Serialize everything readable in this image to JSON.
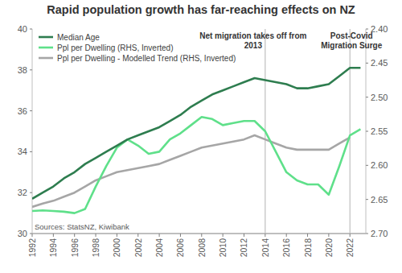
{
  "chart_data": {
    "type": "line",
    "title": "Rapid population growth has far-reaching effects on NZ",
    "source": "Sources: StatsNZ, Kiwibank",
    "x": [
      1992,
      1993,
      1994,
      1995,
      1996,
      1997,
      1998,
      1999,
      2000,
      2001,
      2002,
      2003,
      2004,
      2005,
      2006,
      2007,
      2008,
      2009,
      2010,
      2011,
      2012,
      2013,
      2014,
      2015,
      2016,
      2017,
      2018,
      2019,
      2020,
      2021,
      2022,
      2023
    ],
    "xlim": [
      1992,
      2023.5
    ],
    "xticks": [
      1992,
      1994,
      1996,
      1998,
      2000,
      2002,
      2004,
      2006,
      2008,
      2010,
      2012,
      2014,
      2016,
      2018,
      2020,
      2022
    ],
    "ylim": [
      30,
      40
    ],
    "yticks": [
      30,
      32,
      34,
      36,
      38,
      40
    ],
    "y2lim": [
      2.7,
      2.4
    ],
    "y2ticks": [
      {
        "value": 2.7,
        "label": "2.70"
      },
      {
        "value": 2.65,
        "label": "2.65"
      },
      {
        "value": 2.6,
        "label": "2.60"
      },
      {
        "value": 2.55,
        "label": "2.55"
      },
      {
        "value": 2.5,
        "label": "2.50"
      },
      {
        "value": 2.45,
        "label": "2.45"
      },
      {
        "value": 2.4,
        "label": "2.40"
      }
    ],
    "grid": false,
    "legend": "top-left",
    "series": [
      {
        "name": "Median Age",
        "color": "#2e7d4f",
        "values": [
          31.7,
          32.0,
          32.3,
          32.7,
          33.0,
          33.4,
          33.7,
          34.0,
          34.3,
          34.6,
          34.8,
          35.0,
          35.2,
          35.5,
          35.8,
          36.2,
          36.5,
          36.8,
          37.0,
          37.2,
          37.4,
          37.6,
          37.5,
          37.4,
          37.3,
          37.1,
          37.1,
          37.2,
          37.3,
          37.7,
          38.1,
          38.1
        ]
      },
      {
        "name": "Ppl per Dwelling (RHS, Inverted)",
        "color": "#5fe08a",
        "axis": "y2",
        "values": [
          2.667,
          2.666,
          2.667,
          2.668,
          2.67,
          2.664,
          2.631,
          2.601,
          2.574,
          2.562,
          2.571,
          2.583,
          2.58,
          2.562,
          2.553,
          2.541,
          2.529,
          2.532,
          2.541,
          2.538,
          2.535,
          2.535,
          2.55,
          2.58,
          2.61,
          2.622,
          2.628,
          2.628,
          2.643,
          2.601,
          2.556,
          2.547
        ]
      },
      {
        "name": "Ppl per Dwelling - Modelled Trend (RHS, Inverted)",
        "color": "#a6a6a6",
        "axis": "y2",
        "values": [
          2.661,
          2.656,
          2.652,
          2.646,
          2.64,
          2.631,
          2.622,
          2.616,
          2.61,
          2.607,
          2.604,
          2.601,
          2.598,
          2.592,
          2.586,
          2.58,
          2.574,
          2.571,
          2.568,
          2.565,
          2.562,
          2.556,
          2.562,
          2.568,
          2.574,
          2.577,
          2.577,
          2.577,
          2.577,
          2.568,
          2.559,
          null
        ]
      }
    ],
    "annotations": [
      {
        "x": 2014,
        "lines": [
          "Net migration takes off from",
          "2013"
        ]
      },
      {
        "x": 2022,
        "lines": [
          "Post-Covid",
          "Migration Surge"
        ]
      }
    ]
  }
}
